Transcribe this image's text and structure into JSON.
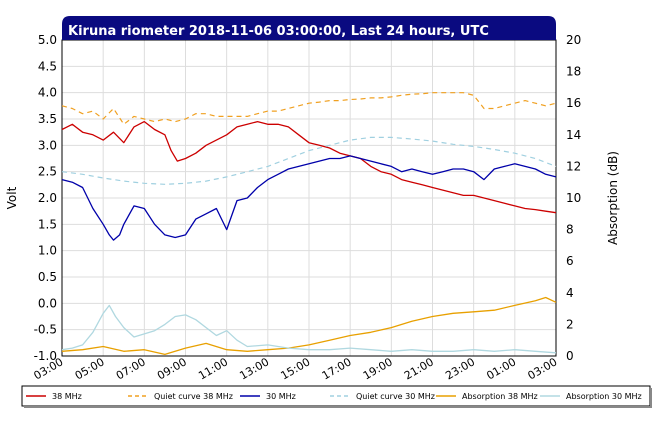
{
  "chart_data": {
    "type": "line",
    "title": "Kiruna riometer 2018-11-06 03:00:00, Last 24 hours, UTC",
    "ylabel": "Volt",
    "y2label": "Absorption (dB)",
    "ylim": [
      -1.0,
      5.0
    ],
    "y2lim": [
      0,
      20
    ],
    "yticks": [
      "5.0",
      "4.5",
      "4.0",
      "3.5",
      "3.0",
      "2.5",
      "2.0",
      "1.5",
      "1.0",
      "0.5",
      "0.0",
      "-0.5",
      "-1.0"
    ],
    "y2ticks": [
      "20",
      "18",
      "16",
      "14",
      "12",
      "10",
      "8",
      "6",
      "4",
      "2",
      "0"
    ],
    "xlim": [
      3,
      27
    ],
    "xticks": [
      "03:00",
      "05:00",
      "07:00",
      "09:00",
      "11:00",
      "13:00",
      "15:00",
      "17:00",
      "19:00",
      "21:00",
      "23:00",
      "01:00",
      "03:00"
    ],
    "grid": true,
    "legend_position": "bottom",
    "series": [
      {
        "name": "38 MHz",
        "color": "#cc0000",
        "dash": "solid",
        "axis": "left",
        "x": [
          3.0,
          3.5,
          4.0,
          4.5,
          5.0,
          5.5,
          6.0,
          6.5,
          7.0,
          7.5,
          8.0,
          8.3,
          8.6,
          9.0,
          9.5,
          10.0,
          10.5,
          11.0,
          11.5,
          12.0,
          12.5,
          13.0,
          13.5,
          14.0,
          14.5,
          15.0,
          15.5,
          16.0,
          16.5,
          17.0,
          17.5,
          18.0,
          18.5,
          19.0,
          19.5,
          20.0,
          20.5,
          21.0,
          21.5,
          22.0,
          22.5,
          23.0,
          23.5,
          24.0,
          24.5,
          25.0,
          25.5,
          26.0,
          26.5,
          27.0
        ],
        "y": [
          3.3,
          3.4,
          3.25,
          3.2,
          3.1,
          3.25,
          3.05,
          3.35,
          3.45,
          3.3,
          3.2,
          2.9,
          2.7,
          2.75,
          2.85,
          3.0,
          3.1,
          3.2,
          3.35,
          3.4,
          3.45,
          3.4,
          3.4,
          3.35,
          3.2,
          3.05,
          3.0,
          2.95,
          2.85,
          2.8,
          2.75,
          2.6,
          2.5,
          2.45,
          2.35,
          2.3,
          2.25,
          2.2,
          2.15,
          2.1,
          2.05,
          2.05,
          2.0,
          1.95,
          1.9,
          1.85,
          1.8,
          1.78,
          1.75,
          1.72
        ]
      },
      {
        "name": "Quiet curve 38 MHz",
        "color": "#f0a020",
        "dash": "dashed",
        "axis": "left",
        "x": [
          3.0,
          3.5,
          4.0,
          4.5,
          5.0,
          5.5,
          6.0,
          6.5,
          7.0,
          7.5,
          8.0,
          8.5,
          9.0,
          9.5,
          10.0,
          10.5,
          11.0,
          11.5,
          12.0,
          12.5,
          13.0,
          13.5,
          14.0,
          14.5,
          15.0,
          15.5,
          16.0,
          16.5,
          17.0,
          17.5,
          18.0,
          18.5,
          19.0,
          19.5,
          20.0,
          20.5,
          21.0,
          21.5,
          22.0,
          22.5,
          23.0,
          23.5,
          24.0,
          24.5,
          25.0,
          25.5,
          26.0,
          26.5,
          27.0
        ],
        "y": [
          3.75,
          3.7,
          3.6,
          3.65,
          3.5,
          3.7,
          3.4,
          3.55,
          3.5,
          3.45,
          3.5,
          3.45,
          3.5,
          3.6,
          3.6,
          3.55,
          3.55,
          3.55,
          3.55,
          3.6,
          3.65,
          3.65,
          3.7,
          3.75,
          3.8,
          3.82,
          3.85,
          3.85,
          3.87,
          3.88,
          3.9,
          3.9,
          3.92,
          3.95,
          3.97,
          3.98,
          4.0,
          4.0,
          4.0,
          4.0,
          3.95,
          3.7,
          3.7,
          3.75,
          3.8,
          3.85,
          3.8,
          3.75,
          3.8
        ]
      },
      {
        "name": "30 MHz",
        "color": "#0000aa",
        "dash": "solid",
        "axis": "left",
        "x": [
          3.0,
          3.5,
          4.0,
          4.5,
          5.0,
          5.3,
          5.5,
          5.8,
          6.0,
          6.5,
          7.0,
          7.5,
          8.0,
          8.5,
          9.0,
          9.5,
          10.0,
          10.5,
          11.0,
          11.5,
          12.0,
          12.5,
          13.0,
          13.5,
          14.0,
          14.5,
          15.0,
          15.5,
          16.0,
          16.5,
          17.0,
          17.5,
          18.0,
          18.5,
          19.0,
          19.5,
          20.0,
          20.5,
          21.0,
          21.5,
          22.0,
          22.5,
          23.0,
          23.5,
          24.0,
          24.5,
          25.0,
          25.5,
          26.0,
          26.5,
          27.0
        ],
        "y": [
          2.35,
          2.3,
          2.2,
          1.8,
          1.5,
          1.3,
          1.2,
          1.3,
          1.5,
          1.85,
          1.8,
          1.5,
          1.3,
          1.25,
          1.3,
          1.6,
          1.7,
          1.8,
          1.4,
          1.95,
          2.0,
          2.2,
          2.35,
          2.45,
          2.55,
          2.6,
          2.65,
          2.7,
          2.75,
          2.75,
          2.8,
          2.75,
          2.7,
          2.65,
          2.6,
          2.5,
          2.55,
          2.5,
          2.45,
          2.5,
          2.55,
          2.55,
          2.5,
          2.35,
          2.55,
          2.6,
          2.65,
          2.6,
          2.55,
          2.45,
          2.4
        ]
      },
      {
        "name": "Quiet curve 30 MHz",
        "color": "#a0d0e0",
        "dash": "dashed",
        "axis": "left",
        "x": [
          3.0,
          4.0,
          5.0,
          6.0,
          7.0,
          8.0,
          9.0,
          10.0,
          11.0,
          12.0,
          13.0,
          14.0,
          15.0,
          16.0,
          17.0,
          18.0,
          19.0,
          20.0,
          21.0,
          22.0,
          23.0,
          24.0,
          25.0,
          26.0,
          27.0
        ],
        "y": [
          2.5,
          2.45,
          2.38,
          2.32,
          2.28,
          2.26,
          2.28,
          2.32,
          2.4,
          2.5,
          2.6,
          2.75,
          2.9,
          3.0,
          3.1,
          3.15,
          3.15,
          3.12,
          3.08,
          3.02,
          2.98,
          2.92,
          2.85,
          2.75,
          2.6
        ]
      },
      {
        "name": "Absorption 38 MHz",
        "color": "#e8a000",
        "dash": "solid",
        "axis": "right",
        "x": [
          3.0,
          4.0,
          5.0,
          6.0,
          7.0,
          8.0,
          9.0,
          10.0,
          11.0,
          12.0,
          13.0,
          14.0,
          15.0,
          16.0,
          17.0,
          18.0,
          19.0,
          20.0,
          21.0,
          22.0,
          23.0,
          24.0,
          25.0,
          26.0,
          26.5,
          27.0
        ],
        "y": [
          0.3,
          0.4,
          0.6,
          0.3,
          0.4,
          0.1,
          0.5,
          0.8,
          0.4,
          0.3,
          0.4,
          0.5,
          0.7,
          1.0,
          1.3,
          1.5,
          1.8,
          2.2,
          2.5,
          2.7,
          2.8,
          2.9,
          3.2,
          3.5,
          3.7,
          3.4
        ]
      },
      {
        "name": "Absorption 30 MHz",
        "color": "#b0d8e0",
        "dash": "solid",
        "axis": "right",
        "x": [
          3.0,
          3.5,
          4.0,
          4.5,
          5.0,
          5.3,
          5.6,
          6.0,
          6.5,
          7.0,
          7.5,
          8.0,
          8.5,
          9.0,
          9.5,
          10.0,
          10.5,
          11.0,
          11.5,
          12.0,
          13.0,
          14.0,
          15.0,
          16.0,
          17.0,
          18.0,
          19.0,
          20.0,
          21.0,
          22.0,
          23.0,
          24.0,
          25.0,
          26.0,
          27.0
        ],
        "y": [
          0.4,
          0.5,
          0.7,
          1.5,
          2.7,
          3.2,
          2.5,
          1.8,
          1.2,
          1.4,
          1.6,
          2.0,
          2.5,
          2.6,
          2.3,
          1.8,
          1.3,
          1.6,
          1.0,
          0.6,
          0.7,
          0.5,
          0.4,
          0.4,
          0.5,
          0.4,
          0.3,
          0.4,
          0.3,
          0.3,
          0.4,
          0.3,
          0.4,
          0.3,
          0.2
        ]
      }
    ]
  }
}
